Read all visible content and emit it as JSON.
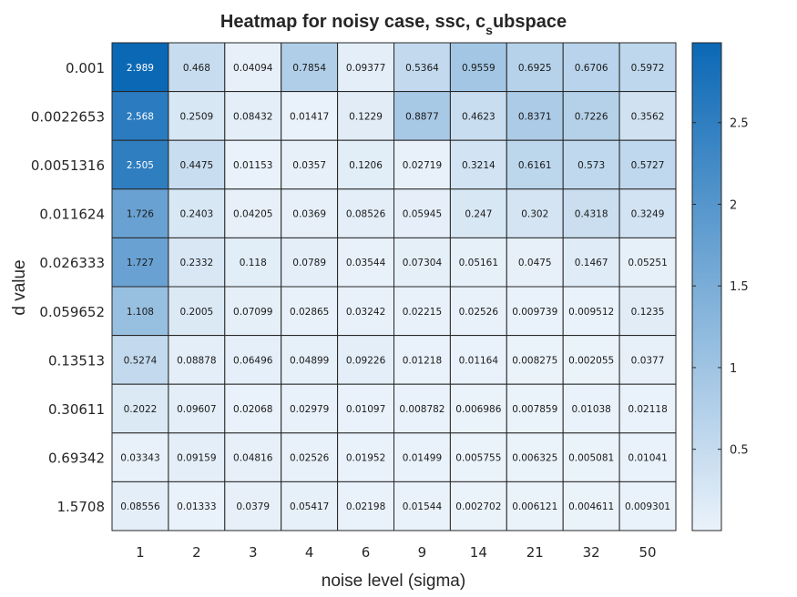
{
  "chart_data": {
    "type": "heatmap",
    "title": "Heatmap for noisy case, ssc, c",
    "title_subscript": "s",
    "title_suffix": "ubspace",
    "xlabel": "noise level (sigma)",
    "ylabel": "d value",
    "x_categories": [
      "1",
      "2",
      "3",
      "4",
      "6",
      "9",
      "14",
      "21",
      "32",
      "50"
    ],
    "y_categories": [
      "0.001",
      "0.0022653",
      "0.0051316",
      "0.011624",
      "0.026333",
      "0.059652",
      "0.13513",
      "0.30611",
      "0.69342",
      "1.5708"
    ],
    "values": [
      [
        "2.989",
        "0.468",
        "0.04094",
        "0.7854",
        "0.09377",
        "0.5364",
        "0.9559",
        "0.6925",
        "0.6706",
        "0.5972"
      ],
      [
        "2.568",
        "0.2509",
        "0.08432",
        "0.01417",
        "0.1229",
        "0.8877",
        "0.4623",
        "0.8371",
        "0.7226",
        "0.3562"
      ],
      [
        "2.505",
        "0.4475",
        "0.01153",
        "0.0357",
        "0.1206",
        "0.02719",
        "0.3214",
        "0.6161",
        "0.573",
        "0.5727"
      ],
      [
        "1.726",
        "0.2403",
        "0.04205",
        "0.0369",
        "0.08526",
        "0.05945",
        "0.247",
        "0.302",
        "0.4318",
        "0.3249"
      ],
      [
        "1.727",
        "0.2332",
        "0.118",
        "0.0789",
        "0.03544",
        "0.07304",
        "0.05161",
        "0.0475",
        "0.1467",
        "0.05251"
      ],
      [
        "1.108",
        "0.2005",
        "0.07099",
        "0.02865",
        "0.03242",
        "0.02215",
        "0.02526",
        "0.009739",
        "0.009512",
        "0.1235"
      ],
      [
        "0.5274",
        "0.08878",
        "0.06496",
        "0.04899",
        "0.09226",
        "0.01218",
        "0.01164",
        "0.008275",
        "0.002055",
        "0.0377"
      ],
      [
        "0.2022",
        "0.09607",
        "0.02068",
        "0.02979",
        "0.01097",
        "0.008782",
        "0.006986",
        "0.007859",
        "0.01038",
        "0.02118"
      ],
      [
        "0.03343",
        "0.09159",
        "0.04816",
        "0.02526",
        "0.01952",
        "0.01499",
        "0.005755",
        "0.006325",
        "0.005081",
        "0.01041"
      ],
      [
        "0.08556",
        "0.01333",
        "0.0379",
        "0.05417",
        "0.02198",
        "0.01544",
        "0.002702",
        "0.006121",
        "0.004611",
        "0.009301"
      ]
    ],
    "colorbar": {
      "ticks": [
        0.5,
        1,
        1.5,
        2,
        2.5
      ],
      "tick_labels": [
        "0.5",
        "1",
        "1.5",
        "2",
        "2.5"
      ],
      "range": [
        0.002055,
        2.989
      ],
      "color_low": "#eaf2fa",
      "color_high": "#0b68b5"
    },
    "grid": true
  }
}
